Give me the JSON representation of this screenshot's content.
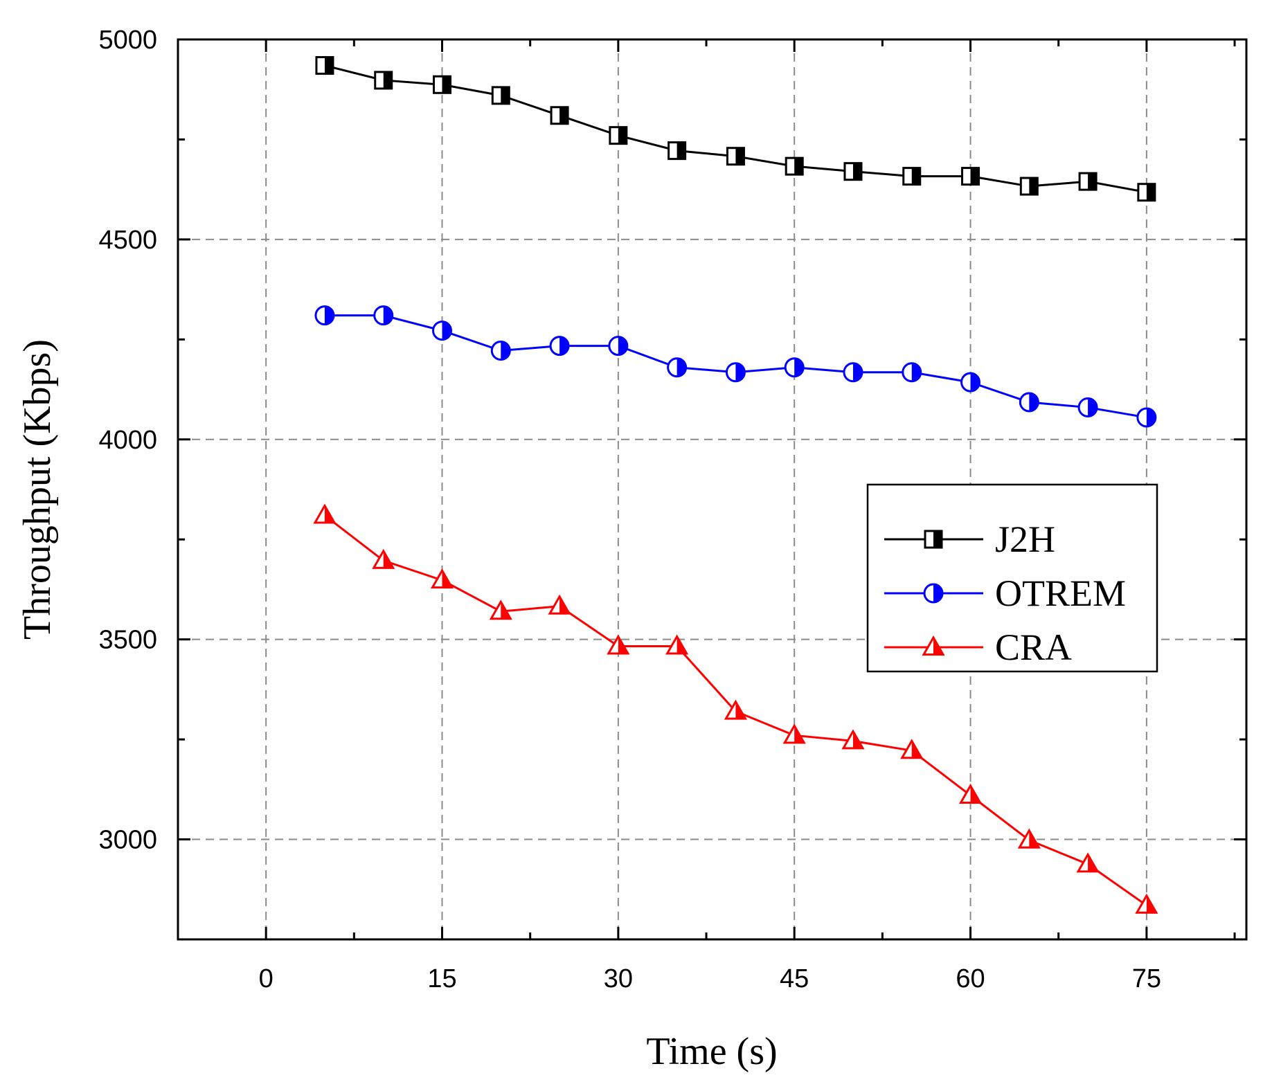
{
  "chart_data": {
    "type": "line",
    "title": "",
    "xlabel": "Time (s)",
    "ylabel": "Throughput (Kbps)",
    "xlim": [
      -7.5,
      83.5
    ],
    "ylim": [
      2750,
      5000
    ],
    "xticks": [
      0,
      15,
      30,
      45,
      60,
      75
    ],
    "xtick_labels": [
      "0",
      "15",
      "30",
      "45",
      "60",
      "75"
    ],
    "yticks": [
      3000,
      3500,
      4000,
      4500,
      5000
    ],
    "ytick_labels": [
      "3000",
      "3500",
      "4000",
      "4500",
      "5000"
    ],
    "grid": true,
    "legend_position": "center-right",
    "x": [
      5,
      10,
      15,
      20,
      25,
      30,
      35,
      40,
      45,
      50,
      55,
      60,
      65,
      70,
      75
    ],
    "series": [
      {
        "name": "J2H",
        "color": "#000000",
        "marker": "half-filled-square",
        "values": [
          4935,
          4898,
          4887,
          4860,
          4810,
          4760,
          4722,
          4708,
          4683,
          4670,
          4658,
          4658,
          4633,
          4645,
          4618
        ]
      },
      {
        "name": "OTREM",
        "color": "#0000ff",
        "marker": "half-filled-circle",
        "values": [
          4310,
          4310,
          4272,
          4222,
          4234,
          4234,
          4180,
          4168,
          4180,
          4168,
          4168,
          4143,
          4093,
          4080,
          4055
        ]
      },
      {
        "name": "CRA",
        "color": "#ff0000",
        "marker": "half-filled-triangle",
        "values": [
          3810,
          3697,
          3648,
          3570,
          3583,
          3483,
          3483,
          3320,
          3260,
          3246,
          3222,
          3110,
          2998,
          2938,
          2835
        ]
      }
    ]
  }
}
